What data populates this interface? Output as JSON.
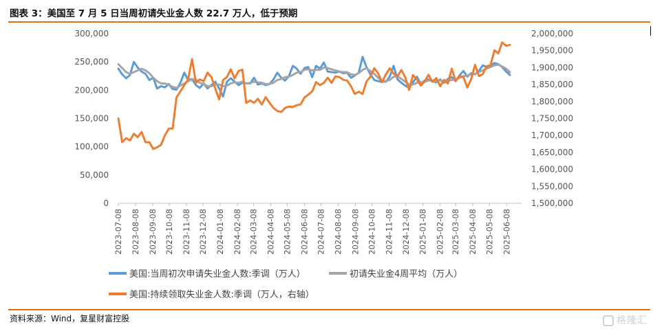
{
  "header": {
    "title": "图表 3：美国至 7 月 5 日当周初请失业金人数 22.7 万人，低于预期"
  },
  "footer": {
    "source": "资料来源：Wind，复星财富控股",
    "watermark": "格隆汇"
  },
  "colors": {
    "accent_rule": "#e46c0a",
    "series_blue": "#5b9bd5",
    "series_gray": "#a5a5a5",
    "series_orange": "#ed7d31"
  },
  "chart_data": {
    "type": "line",
    "title": "",
    "xlabel": "",
    "ylabel": "",
    "x_tick_labels": [
      "2023-07-08",
      "2023-08-08",
      "2023-09-08",
      "2023-10-08",
      "2023-11-08",
      "2023-12-08",
      "2024-01-08",
      "2024-02-08",
      "2024-03-08",
      "2024-04-08",
      "2024-05-08",
      "2024-06-08",
      "2024-07-08",
      "2024-08-08",
      "2024-09-08",
      "2024-10-08",
      "2024-11-08",
      "2024-12-08",
      "2025-01-08",
      "2025-02-08",
      "2025-03-08",
      "2025-04-08",
      "2025-05-08",
      "2025-06-08"
    ],
    "x_start": "2023-07-08",
    "x_end": "2025-07-05",
    "y_left": {
      "min": 0,
      "max": 300000,
      "ticks": [
        "0",
        "50,000",
        "100,000",
        "150,000",
        "200,000",
        "250,000",
        "300,000"
      ]
    },
    "y_right": {
      "min": 1500000,
      "max": 2000000,
      "ticks": [
        "1,500,000",
        "1,550,000",
        "1,600,000",
        "1,650,000",
        "1,700,000",
        "1,750,000",
        "1,800,000",
        "1,850,000",
        "1,900,000",
        "1,950,000",
        "2,000,000"
      ]
    },
    "legend_position": "bottom",
    "series": [
      {
        "name": "美国:当周初次申请失业金人数:季调（万人）",
        "axis": "left",
        "color": "#5b9bd5",
        "values": [
          238000,
          228000,
          221000,
          227000,
          250000,
          240000,
          233000,
          229000,
          218000,
          222000,
          203000,
          207000,
          205000,
          211000,
          202000,
          201000,
          213000,
          231000,
          218000,
          220000,
          209000,
          204000,
          212000,
          203000,
          209000,
          215000,
          203000,
          189000,
          215000,
          221000,
          215000,
          209000,
          213000,
          212000,
          212000,
          222000,
          210000,
          212000,
          209000,
          211000,
          219000,
          231000,
          222000,
          217000,
          225000,
          243000,
          238000,
          229000,
          239000,
          241000,
          223000,
          243000,
          238000,
          249000,
          233000,
          232000,
          231000,
          233000,
          230000,
          231000,
          222000,
          226000,
          231000,
          259000,
          241000,
          228000,
          218000,
          216000,
          215000,
          215000,
          224000,
          243000,
          219000,
          213000,
          208000,
          204000,
          214000,
          224000,
          211000,
          217000,
          219000,
          216000,
          214000,
          219000,
          213000,
          220000,
          223000,
          216000,
          226000,
          234000,
          224000,
          230000,
          228000,
          234000,
          244000,
          241000,
          244000,
          248000,
          246000,
          241000,
          233000,
          227000
        ],
        "weekly_from": "2023-07-08"
      },
      {
        "name": "初请失业金4周平均（万人）",
        "axis": "left",
        "color": "#a5a5a5",
        "values": [
          246000,
          239000,
          232000,
          229000,
          232000,
          235000,
          238000,
          235000,
          230000,
          222000,
          216000,
          212000,
          212000,
          209000,
          206000,
          204000,
          208000,
          212000,
          216000,
          219000,
          219000,
          213000,
          211000,
          207000,
          207000,
          210000,
          210000,
          207000,
          208000,
          212000,
          214000,
          213000,
          215000,
          212000,
          213000,
          215000,
          214000,
          213000,
          211000,
          211000,
          213000,
          218000,
          220000,
          223000,
          224000,
          227000,
          231000,
          232000,
          236000,
          237000,
          235000,
          236000,
          236000,
          240000,
          239000,
          237000,
          235000,
          233000,
          232000,
          232000,
          228000,
          227000,
          230000,
          236000,
          239000,
          234000,
          229000,
          222000,
          216000,
          216000,
          218000,
          224000,
          224000,
          220000,
          215000,
          210000,
          210000,
          213000,
          214000,
          215000,
          217000,
          217000,
          216000,
          217000,
          216000,
          217000,
          218000,
          219000,
          222000,
          225000,
          226000,
          228000,
          229000,
          232000,
          235000,
          238000,
          241000,
          244000,
          245000,
          242000,
          238000,
          232000
        ],
        "weekly_from": "2023-07-08"
      },
      {
        "name": "美国:持续领取失业金人数:季调（万人，右轴）",
        "axis": "right",
        "color": "#ed7d31",
        "values": [
          1750000,
          1680000,
          1692000,
          1685000,
          1705000,
          1695000,
          1710000,
          1680000,
          1680000,
          1660000,
          1665000,
          1672000,
          1700000,
          1720000,
          1720000,
          1812000,
          1830000,
          1848000,
          1865000,
          1925000,
          1855000,
          1865000,
          1860000,
          1885000,
          1872000,
          1838000,
          1806000,
          1863000,
          1872000,
          1895000,
          1868000,
          1890000,
          1894000,
          1796000,
          1803000,
          1796000,
          1808000,
          1791000,
          1813000,
          1796000,
          1781000,
          1772000,
          1769000,
          1781000,
          1785000,
          1784000,
          1789000,
          1791000,
          1812000,
          1820000,
          1830000,
          1857000,
          1848000,
          1855000,
          1870000,
          1855000,
          1874000,
          1872000,
          1864000,
          1862000,
          1845000,
          1822000,
          1829000,
          1822000,
          1859000,
          1873000,
          1898000,
          1883000,
          1857000,
          1880000,
          1898000,
          1882000,
          1874000,
          1893000,
          1871000,
          1834000,
          1878000,
          1865000,
          1847000,
          1858000,
          1879000,
          1858000,
          1869000,
          1845000,
          1864000,
          1853000,
          1897000,
          1860000,
          1874000,
          1872000,
          1841000,
          1866000,
          1908000,
          1875000,
          1881000,
          1904000,
          1907000,
          1951000,
          1942000,
          1974000,
          1964000,
          1967000
        ],
        "weekly_from": "2023-07-08"
      }
    ]
  }
}
